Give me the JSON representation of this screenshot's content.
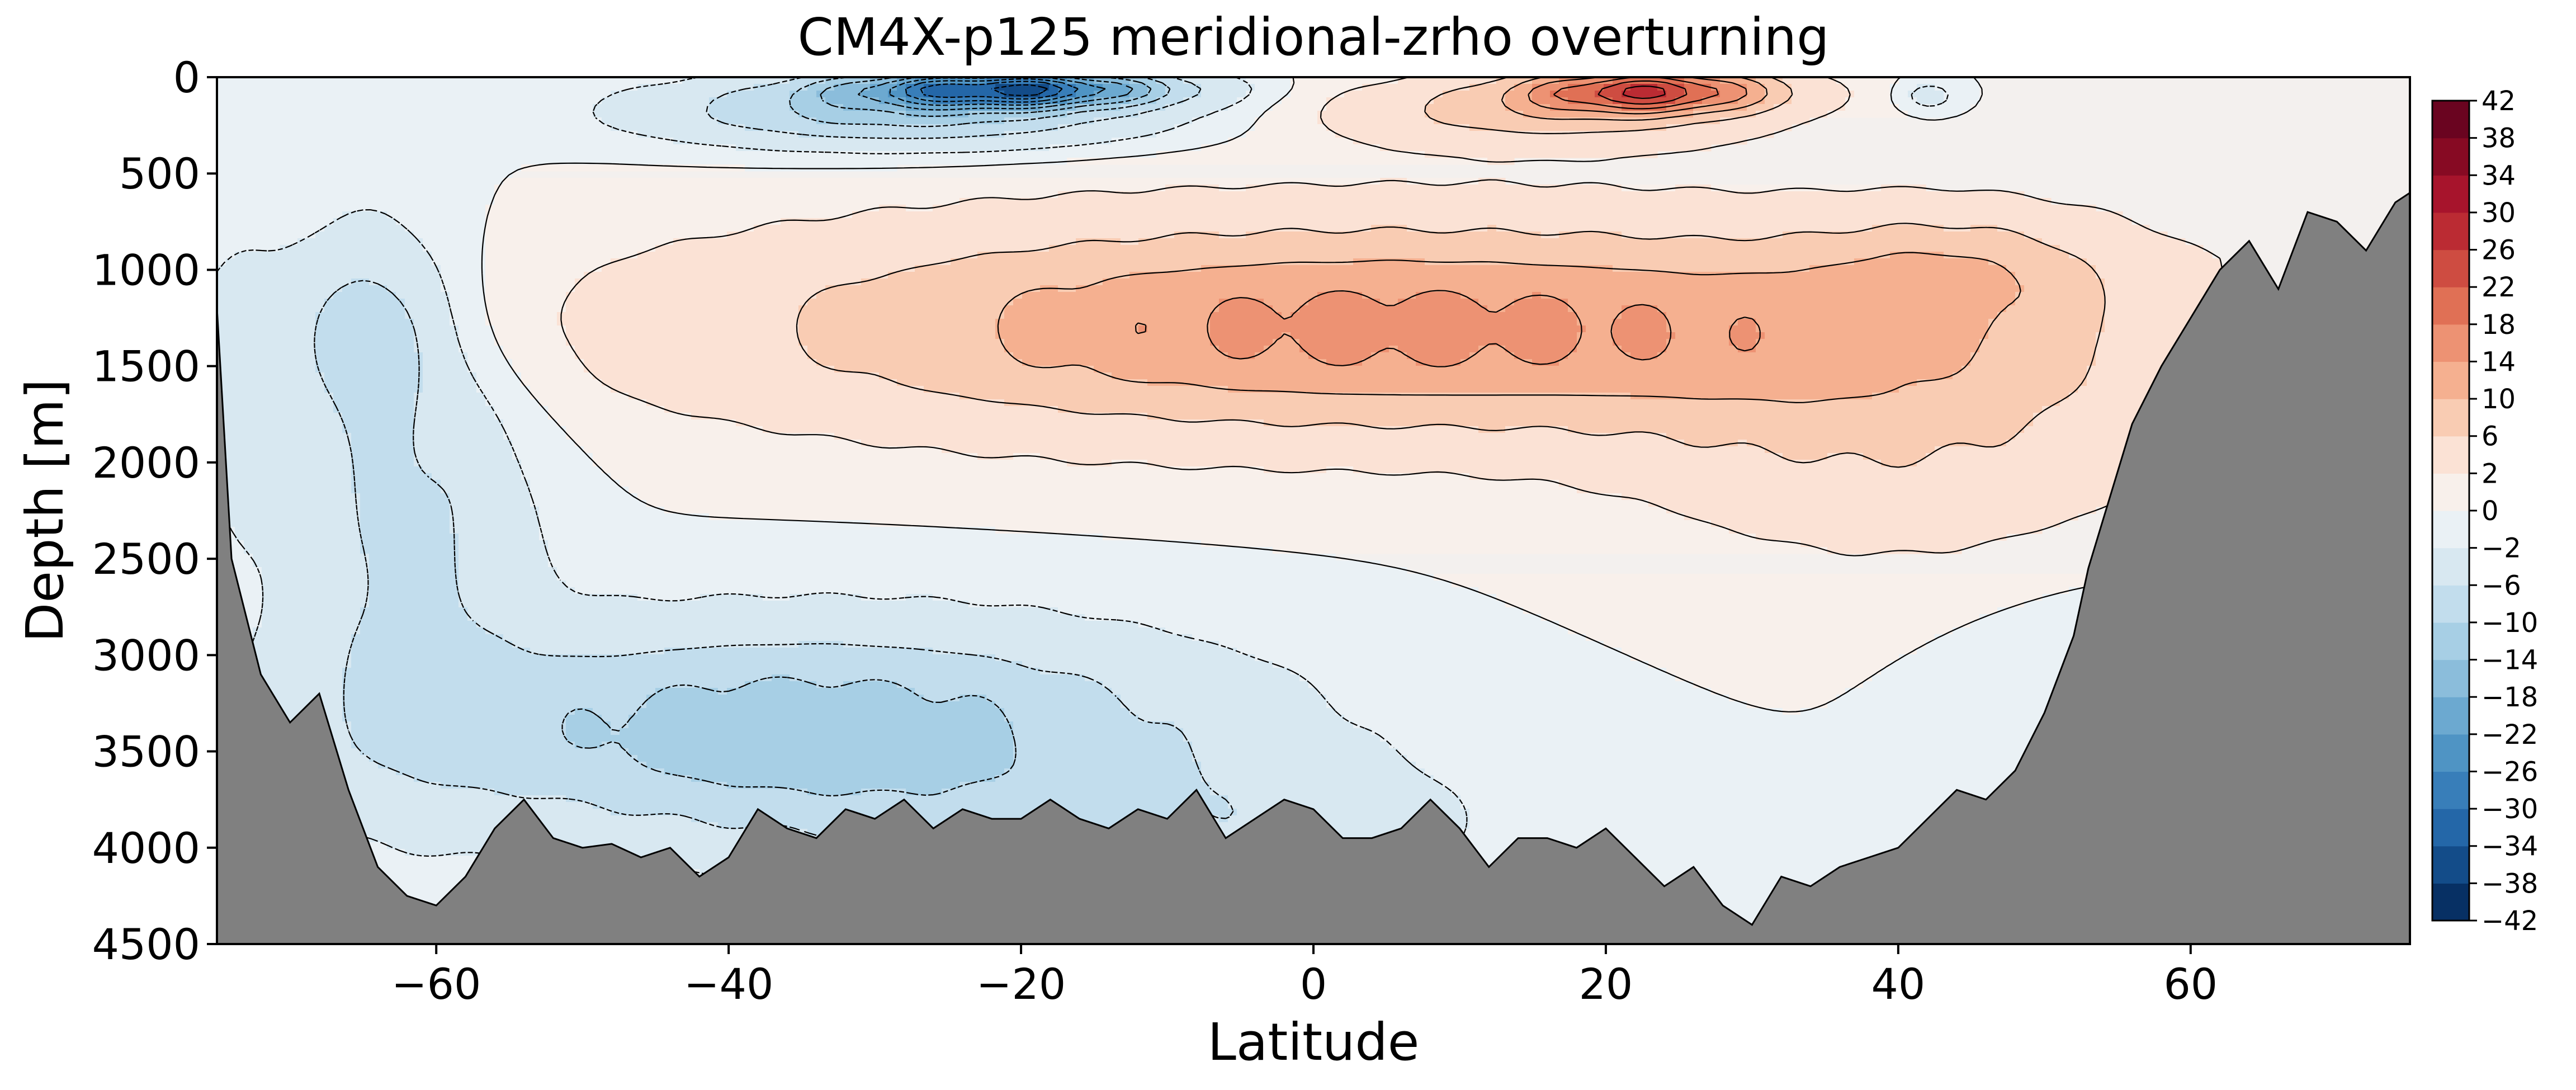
{
  "chart_data": {
    "type": "heatmap",
    "subtype": "filled-contour-section",
    "title": "CM4X-p125 meridional-zrho overturning",
    "xlabel": "Latitude",
    "ylabel": "Depth [m]",
    "xlim": [
      -75,
      75
    ],
    "ylim": [
      4500,
      0
    ],
    "xticks": [
      -60,
      -40,
      -20,
      0,
      20,
      40,
      60
    ],
    "xtick_labels": [
      "−60",
      "−40",
      "−20",
      "0",
      "20",
      "40",
      "60"
    ],
    "yticks": [
      0,
      500,
      1000,
      1500,
      2000,
      2500,
      3000,
      3500,
      4000,
      4500
    ],
    "ytick_labels": [
      "0",
      "500",
      "1000",
      "1500",
      "2000",
      "2500",
      "3000",
      "3500",
      "4000",
      "4500"
    ],
    "colorbar": {
      "levels": [
        -42,
        -38,
        -34,
        -30,
        -26,
        -22,
        -18,
        -14,
        -10,
        -6,
        -2,
        0,
        2,
        6,
        10,
        14,
        18,
        22,
        26,
        30,
        34,
        38,
        42
      ],
      "tick_labels": [
        "42",
        "38",
        "34",
        "30",
        "26",
        "22",
        "18",
        "14",
        "10",
        "6",
        "2",
        "0",
        "−2",
        "−6",
        "−10",
        "−14",
        "−18",
        "−22",
        "−26",
        "−30",
        "−34",
        "−38",
        "−42"
      ],
      "colors": [
        "#073064",
        "#134c89",
        "#2467a8",
        "#387eb9",
        "#4f94c4",
        "#6ca9d0",
        "#8bbddb",
        "#a7cfe5",
        "#c2dded",
        "#d8e8f1",
        "#eaf1f5",
        "#f8f0eb",
        "#fbe2d5",
        "#f9ccb3",
        "#f5b090",
        "#ed9273",
        "#e07055",
        "#ce4c41",
        "#bb2b33",
        "#a7142c",
        "#870a23",
        "#6a0420"
      ]
    },
    "bathymetry": {
      "lat": [
        -75,
        -74,
        -72,
        -70,
        -68,
        -66,
        -64,
        -62,
        -60,
        -58,
        -56,
        -54,
        -52,
        -50,
        -48,
        -46,
        -44,
        -42,
        -40,
        -38,
        -36,
        -34,
        -32,
        -30,
        -28,
        -26,
        -24,
        -22,
        -20,
        -18,
        -16,
        -14,
        -12,
        -10,
        -8,
        -6,
        -4,
        -2,
        0,
        2,
        4,
        6,
        8,
        10,
        12,
        14,
        16,
        18,
        20,
        22,
        24,
        26,
        28,
        30,
        32,
        34,
        36,
        38,
        40,
        42,
        44,
        46,
        48,
        50,
        52,
        53,
        54,
        56,
        58,
        60,
        62,
        64,
        66,
        68,
        70,
        72,
        74,
        75
      ],
      "depth": [
        1200,
        2500,
        3100,
        3350,
        3200,
        3700,
        4100,
        4250,
        4300,
        4150,
        3900,
        3750,
        3950,
        4000,
        3980,
        4050,
        4000,
        4150,
        4050,
        3800,
        3900,
        3950,
        3800,
        3850,
        3750,
        3900,
        3800,
        3850,
        3850,
        3750,
        3850,
        3900,
        3800,
        3850,
        3700,
        3950,
        3850,
        3750,
        3800,
        3950,
        3950,
        3900,
        3750,
        3900,
        4100,
        3950,
        3950,
        4000,
        3900,
        4050,
        4200,
        4100,
        4300,
        4400,
        4150,
        4200,
        4100,
        4050,
        4000,
        3850,
        3700,
        3750,
        3600,
        3300,
        2900,
        2550,
        2300,
        1800,
        1500,
        1250,
        1000,
        850,
        1100,
        700,
        750,
        900,
        650,
        600
      ]
    }
  }
}
